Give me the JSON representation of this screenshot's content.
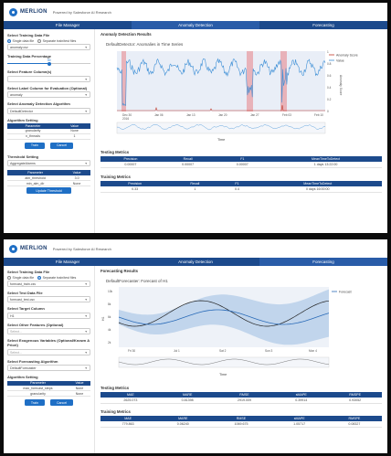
{
  "panel1": {
    "app": {
      "logo_text": "MERLION",
      "tagline": "Powered by Salesforce AI Research"
    },
    "tabs": [
      {
        "label": "File Manager",
        "active": false
      },
      {
        "label": "Anomaly Detection",
        "active": true
      },
      {
        "label": "Forecasting",
        "active": false
      }
    ],
    "sidebar": {
      "training_file_label": "Select Training Data File",
      "radio_single": "Single data file",
      "radio_separate": "Separate train/test files",
      "training_file_value": "anomaly.csv",
      "percentage_label": "Training Data Percentage",
      "percentage_value": "50",
      "percentage_fraction": 0.5,
      "feature_label": "Select Feature Column(s)",
      "feature_value": "",
      "label_col_label": "Select Label Column for Evaluation (Optional)",
      "label_col_value": "anomaly",
      "algorithm_label": "Select Anomaly Detection Algorithm",
      "algorithm_value": "DefaultDetector",
      "algorithm_setting_label": "Algorithm Setting",
      "param_header": "Parameter",
      "value_header": "Value",
      "params": [
        {
          "name": "granularity",
          "value": "None"
        },
        {
          "name": "n_threads",
          "value": "1"
        }
      ],
      "train_button": "Train",
      "cancel_button": "Cancel",
      "threshold_label": "Threshold Setting",
      "threshold_value": "AggregateAlarms",
      "threshold_params": [
        {
          "name": "alm_threshold",
          "value": "3.0"
        },
        {
          "name": "min_alm_dir",
          "value": "None"
        }
      ],
      "update_button": "Update Threshold"
    },
    "main": {
      "title": "Anomaly Detection Results",
      "plot_title": "DefaultDetector: Anomalies in Time Series",
      "legend": [
        "Anomaly Score",
        "Value"
      ],
      "right_axis": "Anomaly Score",
      "x_label": "Time",
      "x_ticks": [
        "Dec 30",
        "Jan 06",
        "Jan 13",
        "Jan 20",
        "Jan 27",
        "Feb 03",
        "Feb 10"
      ],
      "x_tick_year": "2016",
      "y_ticks": [
        "1",
        "0.8",
        "0.6",
        "0.4",
        "0.2",
        "0"
      ],
      "training_metrics_title": "Training Metrics",
      "testing_metrics_title": "Testing Metrics",
      "metric_headers": [
        "Precision",
        "Recall",
        "F1",
        "MeanTimeToDetect"
      ],
      "training_metrics": [
        "0.00007",
        "0.00007",
        "0.00007",
        "1 days 13:22:00"
      ],
      "testing_metrics": [
        "0.33",
        "1",
        "0.4",
        "0 days 16:00:00"
      ]
    },
    "colors": {
      "nav": "#1c4a8c",
      "accent": "#1f6fc5",
      "anomaly_region": "#e88a90",
      "series": "#3d8fd6",
      "score": "#c0392b"
    }
  },
  "panel2": {
    "tabs": [
      {
        "label": "File Manager",
        "active": false
      },
      {
        "label": "Anomaly Detection",
        "active": false
      },
      {
        "label": "Forecasting",
        "active": true
      }
    ],
    "sidebar": {
      "training_file_label": "Select Training Data File",
      "radio_single": "Single data file",
      "radio_separate": "Separate train/test files",
      "training_file_value": "forecast_train.csv",
      "test_file_label": "Select Test Data File",
      "test_file_value": "forecast_test.csv",
      "target_label": "Select Target Column",
      "target_value": "H1",
      "other_label": "Select Other Features (Optional)",
      "other_value": "Select...",
      "exog_label": "Select Exogenous Variables (Optional/Known A Priori)",
      "exog_value": "Select...",
      "algorithm_label": "Select Forecasting Algorithm",
      "algorithm_value": "DefaultForecaster",
      "algorithm_setting_label": "Algorithm Setting",
      "param_header": "Parameter",
      "value_header": "Value",
      "params": [
        {
          "name": "max_forecast_steps",
          "value": "None"
        },
        {
          "name": "granularity",
          "value": "None"
        }
      ],
      "train_button": "Train",
      "cancel_button": "Cancel"
    },
    "main": {
      "title": "Forecasting Results",
      "plot_title": "DefaultForecaster: Forecast of H1",
      "legend": [
        "Forecast"
      ],
      "y_label": "H1",
      "y_ticks": [
        "10k",
        "8k",
        "6k",
        "4k",
        "2k"
      ],
      "x_ticks": [
        "Fri 30",
        "Jul 1",
        "Sat 2",
        "Sun 3",
        "Mon 4"
      ],
      "x_label": "Time",
      "testing_metrics_title": "Testing Metrics",
      "training_metrics_title": "Training Metrics",
      "testing_headers": [
        "MAE",
        "MARE",
        "RMSE",
        "sMAPE",
        "RMSPE"
      ],
      "testing_metrics": [
        "2625.073",
        "0.81398",
        "2919.009",
        "0.39914",
        "0.93052"
      ],
      "training_headers": [
        "MAE",
        "MARE",
        "RMSE",
        "sMAPE",
        "RMSPE"
      ],
      "training_metrics": [
        "779.863",
        "0.06240",
        "1069.675",
        "1.05717",
        "0.08327"
      ]
    },
    "colors": {
      "band": "#b8d0ea",
      "forecast": "#2a6bb8",
      "actual": "#222222"
    }
  }
}
